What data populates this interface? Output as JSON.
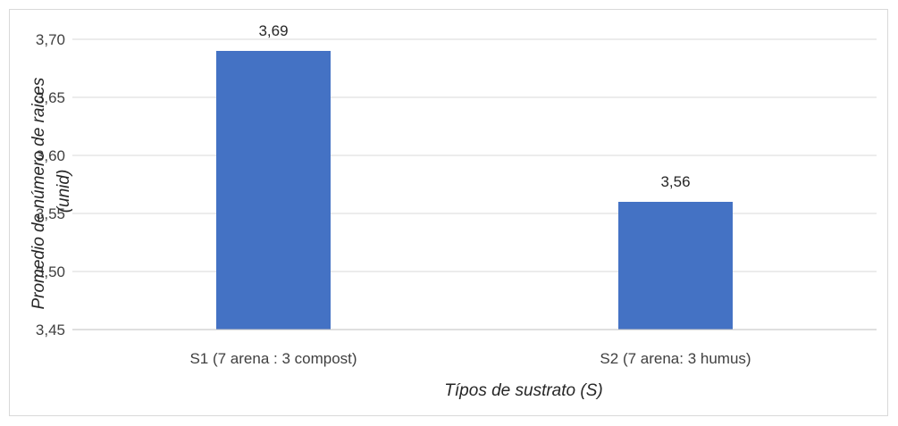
{
  "chart_data": {
    "type": "bar",
    "categories": [
      "S1 (7 arena : 3 compost)",
      "S2 (7 arena: 3 humus)"
    ],
    "values": [
      3.69,
      3.56
    ],
    "value_labels": [
      "3,69",
      "3,56"
    ],
    "title": "",
    "xlabel": "Típos de sustrato (S)",
    "ylabel_lines": [
      "Promedio de número de raices",
      "(unid)"
    ],
    "ylim": [
      3.45,
      3.7
    ],
    "yticks": [
      3.45,
      3.5,
      3.55,
      3.6,
      3.65,
      3.7
    ],
    "ytick_labels": [
      "3,45",
      "3,50",
      "3,55",
      "3,60",
      "3,65",
      "3,70"
    ],
    "grid": true,
    "legend": "none",
    "colors": {
      "bar": "#4472C4",
      "grid": "#d9d9d9",
      "axis": "#bfbfbf"
    }
  }
}
